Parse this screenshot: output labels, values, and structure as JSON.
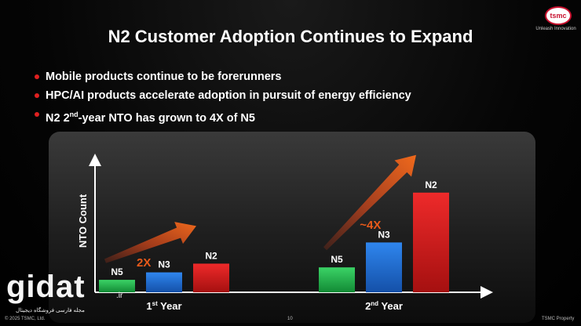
{
  "slide": {
    "title": "N2 Customer Adoption Continues to Expand",
    "bullets": [
      {
        "text": "Mobile products continue to be forerunners"
      },
      {
        "text": "HPC/AI products accelerate adoption in pursuit of energy efficiency"
      },
      {
        "pre": "N2 2",
        "sup": "nd",
        "post": "-year NTO has grown to 4X of N5"
      }
    ],
    "logo": {
      "badge": "tsmc",
      "tagline": "Unleash Innovation"
    },
    "footer": {
      "copyright": "© 2025 TSMC, Ltd.",
      "page": "10",
      "property": "TSMC Property"
    },
    "watermark": {
      "word": "gidat",
      "ext": ".ir",
      "sub": "مجله فارسی فروشگاه دیجیتال"
    }
  },
  "colors": {
    "N5": "#1fb24c",
    "N3": "#1d6fd1",
    "N2": "#d81c1c",
    "arrow": "#e85a1a",
    "bullet": "#e02020"
  },
  "chart_data": {
    "type": "bar",
    "ylabel": "NTO Count",
    "ylim": [
      0,
      10
    ],
    "categories": [
      {
        "label": "1st Year",
        "base": "1",
        "sup": "st",
        "rest": " Year"
      },
      {
        "label": "2nd Year",
        "base": "2",
        "sup": "nd",
        "rest": " Year"
      }
    ],
    "series": [
      {
        "name": "N5",
        "values": [
          1,
          2
        ]
      },
      {
        "name": "N3",
        "values": [
          1.6,
          4
        ]
      },
      {
        "name": "N2",
        "values": [
          2.3,
          8
        ]
      }
    ],
    "annotations": [
      {
        "text": "2X",
        "group": 0
      },
      {
        "text": "~4X",
        "group": 1
      }
    ]
  }
}
